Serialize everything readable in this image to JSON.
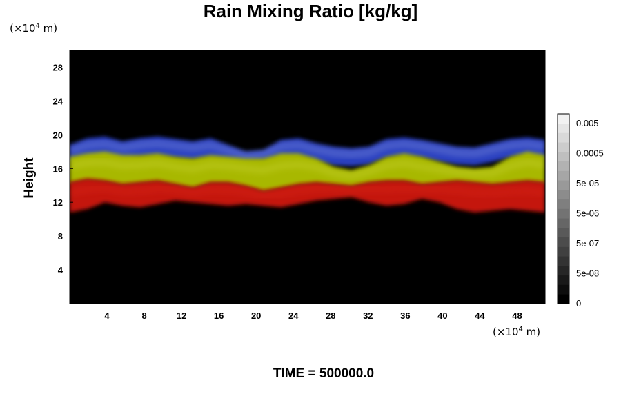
{
  "chart_data": {
    "type": "heatmap",
    "title": "Rain Mixing Ratio [kg/kg]",
    "xlabel": "",
    "ylabel": "Height",
    "x_unit": {
      "prefix": "(×10",
      "exp": "4",
      "suffix": " m)"
    },
    "y_unit": {
      "prefix": "(×10",
      "exp": "4",
      "suffix": " m)"
    },
    "xlim": [
      0,
      51
    ],
    "ylim": [
      0,
      30
    ],
    "x_ticks": [
      4,
      8,
      12,
      16,
      20,
      24,
      28,
      32,
      36,
      40,
      44,
      48
    ],
    "y_ticks": [
      4,
      8,
      12,
      16,
      20,
      24,
      28
    ],
    "grid": false,
    "background_color": "#000000",
    "bands": [
      {
        "name": "blue",
        "color": "#2a3fc0",
        "highlight": "#c8d0f0",
        "top": [
          18.8,
          19.6,
          19.8,
          19.2,
          19.6,
          19.8,
          19.5,
          19.2,
          19.6,
          18.8,
          18.0,
          18.2,
          19.4,
          19.6,
          19.0,
          18.6,
          18.4,
          18.6,
          19.5,
          19.7,
          19.4,
          19.0,
          18.6,
          18.5,
          19.0,
          19.5,
          19.7,
          19.4
        ],
        "bottom": [
          16.8,
          17.2,
          17.4,
          17.0,
          17.3,
          17.4,
          17.2,
          17.0,
          17.2,
          16.9,
          16.6,
          16.8,
          17.2,
          17.3,
          16.8,
          16.4,
          16.3,
          16.5,
          17.2,
          17.4,
          17.2,
          16.8,
          16.5,
          16.4,
          16.8,
          17.3,
          17.4,
          17.1
        ]
      },
      {
        "name": "yellow",
        "color": "#a8b800",
        "highlight": "#e0e85a",
        "top": [
          17.4,
          17.8,
          18.0,
          17.6,
          17.6,
          17.8,
          17.4,
          17.2,
          17.6,
          17.4,
          17.2,
          17.2,
          17.8,
          17.8,
          17.2,
          16.2,
          15.8,
          16.4,
          17.4,
          17.8,
          17.4,
          16.8,
          16.2,
          16.0,
          16.2,
          17.4,
          18.0,
          17.6
        ],
        "bottom": [
          14.2,
          14.6,
          14.4,
          14.0,
          14.2,
          14.4,
          14.0,
          13.6,
          14.2,
          14.2,
          13.8,
          13.2,
          13.6,
          14.0,
          14.2,
          14.0,
          13.8,
          14.2,
          14.4,
          14.4,
          14.0,
          14.2,
          14.4,
          14.2,
          14.0,
          14.2,
          14.4,
          14.2
        ]
      },
      {
        "name": "red",
        "color": "#c41410",
        "highlight": "#e83020",
        "top": [
          14.4,
          14.8,
          14.6,
          14.2,
          14.4,
          14.6,
          14.2,
          13.8,
          14.4,
          14.4,
          14.0,
          13.4,
          13.8,
          14.2,
          14.4,
          14.2,
          14.0,
          14.4,
          14.6,
          14.6,
          14.2,
          14.4,
          14.6,
          14.4,
          14.2,
          14.4,
          14.6,
          14.4
        ],
        "bottom": [
          10.8,
          11.2,
          12.0,
          11.6,
          11.4,
          11.8,
          12.2,
          12.0,
          11.8,
          11.6,
          11.8,
          11.6,
          11.4,
          11.8,
          12.2,
          12.4,
          12.6,
          12.0,
          11.6,
          11.8,
          12.4,
          12.0,
          11.2,
          10.8,
          11.0,
          11.2,
          11.0,
          10.8
        ]
      }
    ],
    "colorbar": {
      "tick_labels": [
        "0.005",
        "0.0005",
        "5e-05",
        "5e-06",
        "5e-07",
        "5e-08",
        "0"
      ],
      "tick_values": [
        0.005,
        0.0005,
        5e-05,
        5e-06,
        5e-07,
        5e-08,
        0
      ],
      "n_levels": 20,
      "color_low": "#000000",
      "color_high": "#f2f2f2"
    },
    "annotation": "TIME = 500000.0"
  }
}
